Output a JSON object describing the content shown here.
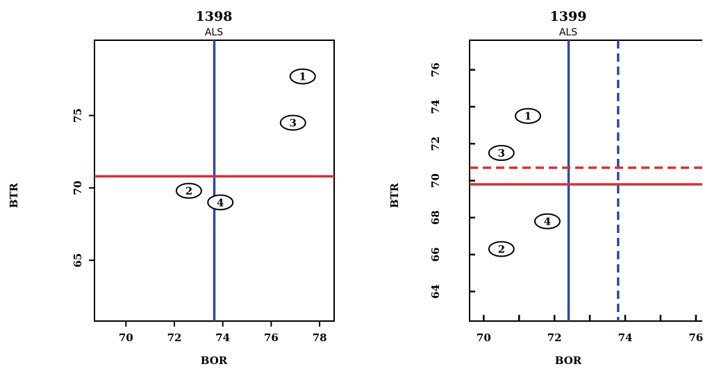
{
  "colors": {
    "blue": "#2b4c9c",
    "red": "#d8303a",
    "frame": "#000000"
  },
  "chart_data": [
    {
      "type": "scatter",
      "title": "1398",
      "subtitle": "ALS",
      "xlabel": "BOR",
      "ylabel": "BTR",
      "xlim": [
        68.7,
        78.6
      ],
      "ylim": [
        60.8,
        80.2
      ],
      "xticks": [
        70,
        72,
        74,
        76,
        78
      ],
      "yticks": [
        65,
        70,
        75
      ],
      "y_ticklabels_bold": true,
      "x_ticklabels_bold": true,
      "points": [
        {
          "label": "1",
          "x": 77.3,
          "y": 77.7
        },
        {
          "label": "2",
          "x": 72.6,
          "y": 69.8
        },
        {
          "label": "3",
          "x": 76.9,
          "y": 74.5
        },
        {
          "label": "4",
          "x": 73.9,
          "y": 69.0
        }
      ],
      "ref_lines": [
        {
          "orient": "vertical",
          "value": 73.65,
          "color": "blue",
          "style": "solid"
        },
        {
          "orient": "horizontal",
          "value": 70.8,
          "color": "red",
          "style": "solid"
        }
      ]
    },
    {
      "type": "scatter",
      "title": "1399",
      "subtitle": "ALS",
      "xlabel": "BOR",
      "ylabel": "BTR",
      "xlim": [
        69.6,
        76.2
      ],
      "ylim": [
        62.4,
        77.6
      ],
      "xticks": [
        70,
        71,
        72,
        73,
        74,
        75,
        76
      ],
      "xticklabels": [
        "70",
        "",
        "72",
        "",
        "74",
        "",
        "76"
      ],
      "yticks": [
        64,
        66,
        68,
        70,
        72,
        74,
        76
      ],
      "y_ticklabels_bold": true,
      "x_ticklabels_bold": true,
      "points": [
        {
          "label": "1",
          "x": 71.25,
          "y": 73.5
        },
        {
          "label": "2",
          "x": 70.5,
          "y": 66.3
        },
        {
          "label": "3",
          "x": 70.5,
          "y": 71.5
        },
        {
          "label": "4",
          "x": 71.8,
          "y": 67.8
        }
      ],
      "ref_lines": [
        {
          "orient": "vertical",
          "value": 72.4,
          "color": "blue",
          "style": "solid"
        },
        {
          "orient": "vertical",
          "value": 73.8,
          "color": "blue",
          "style": "dashed"
        },
        {
          "orient": "horizontal",
          "value": 69.8,
          "color": "red",
          "style": "solid"
        },
        {
          "orient": "horizontal",
          "value": 70.7,
          "color": "red",
          "style": "dashed"
        }
      ]
    }
  ]
}
